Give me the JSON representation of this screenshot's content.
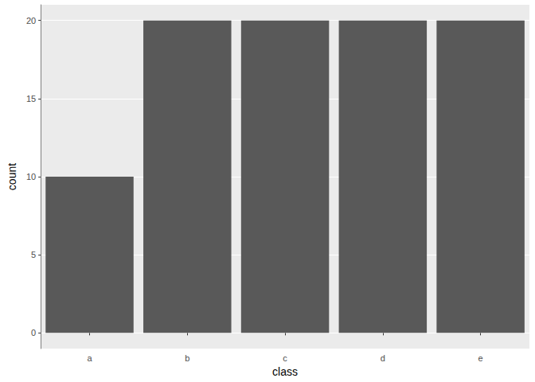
{
  "chart_data": {
    "type": "bar",
    "x_label": "class",
    "y_label": "count",
    "categories": [
      "a",
      "b",
      "c",
      "d",
      "e"
    ],
    "values": [
      10,
      20,
      20,
      20,
      20
    ],
    "color": "#595959",
    "ylim": [
      -1,
      21
    ],
    "yticks": [
      0,
      5,
      10,
      15,
      20
    ],
    "grid": true
  }
}
